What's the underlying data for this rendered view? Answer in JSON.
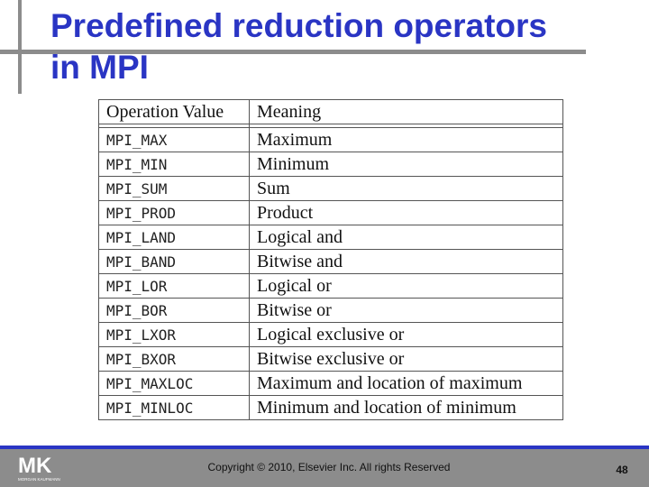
{
  "title": {
    "line1": "Predefined reduction operators",
    "line2": "in MPI"
  },
  "table": {
    "headers": [
      "Operation Value",
      "Meaning"
    ],
    "rows": [
      [
        "MPI_MAX",
        "Maximum"
      ],
      [
        "MPI_MIN",
        "Minimum"
      ],
      [
        "MPI_SUM",
        "Sum"
      ],
      [
        "MPI_PROD",
        "Product"
      ],
      [
        "MPI_LAND",
        "Logical and"
      ],
      [
        "MPI_BAND",
        "Bitwise and"
      ],
      [
        "MPI_LOR",
        "Logical or"
      ],
      [
        "MPI_BOR",
        "Bitwise or"
      ],
      [
        "MPI_LXOR",
        "Logical exclusive or"
      ],
      [
        "MPI_BXOR",
        "Bitwise exclusive or"
      ],
      [
        "MPI_MAXLOC",
        "Maximum and location of maximum"
      ],
      [
        "MPI_MINLOC",
        "Minimum and location of minimum"
      ]
    ]
  },
  "footer": {
    "logo_text": "MK",
    "logo_caption": "MORGAN KAUFMANN",
    "copyright": "Copyright © 2010, Elsevier Inc. All rights Reserved",
    "page_number": "48"
  },
  "colors": {
    "title": "#2a35c4",
    "bar": "#8c8c8c",
    "accent_line": "#2a35c4"
  }
}
